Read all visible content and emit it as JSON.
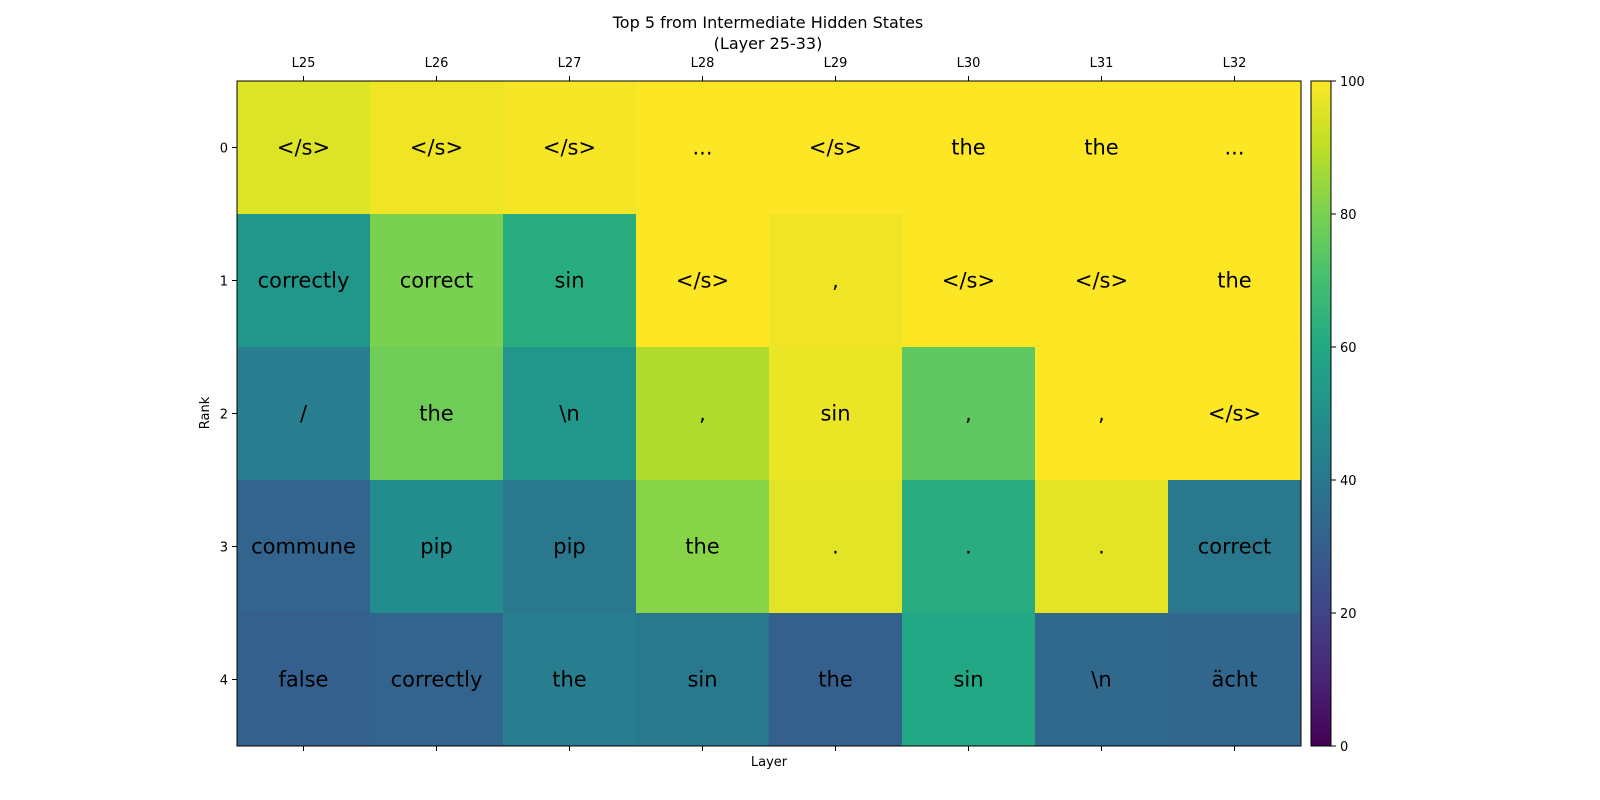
{
  "chart_data": {
    "type": "heatmap",
    "title": "Top 5 from Intermediate Hidden States",
    "subtitle": "(Layer 25-33)",
    "xlabel": "Layer",
    "ylabel": "Rank",
    "x_labels": [
      "L25",
      "L26",
      "L27",
      "L28",
      "L29",
      "L30",
      "L31",
      "L32"
    ],
    "y_labels": [
      "0",
      "1",
      "2",
      "3",
      "4"
    ],
    "tokens": [
      [
        "</s>",
        "</s>",
        "</s>",
        "...",
        "</s>",
        "the",
        "the",
        "..."
      ],
      [
        "correctly",
        "correct",
        "sin",
        "</s>",
        ",",
        "</s>",
        "</s>",
        "the"
      ],
      [
        "/",
        "the",
        "\\n",
        ",",
        "sin",
        ",",
        ",",
        "</s>"
      ],
      [
        "commune",
        "pip",
        "pip",
        "the",
        ".",
        ".",
        ".",
        "correct"
      ],
      [
        "false",
        "correctly",
        "the",
        "sin",
        "the",
        "sin",
        "\\n",
        "ächt"
      ]
    ],
    "values": [
      [
        95,
        98,
        99,
        100,
        100,
        100,
        100,
        100
      ],
      [
        52,
        80,
        62,
        100,
        98,
        100,
        100,
        100
      ],
      [
        42,
        78,
        52,
        88,
        97,
        75,
        100,
        100
      ],
      [
        32,
        48,
        40,
        82,
        96,
        62,
        96,
        40
      ],
      [
        30,
        32,
        42,
        40,
        30,
        60,
        34,
        33
      ]
    ],
    "colorbar": {
      "colormap": "viridis",
      "range": [
        0,
        100
      ],
      "ticks": [
        "0",
        "20",
        "40",
        "60",
        "80",
        "100"
      ]
    },
    "grid": false
  }
}
